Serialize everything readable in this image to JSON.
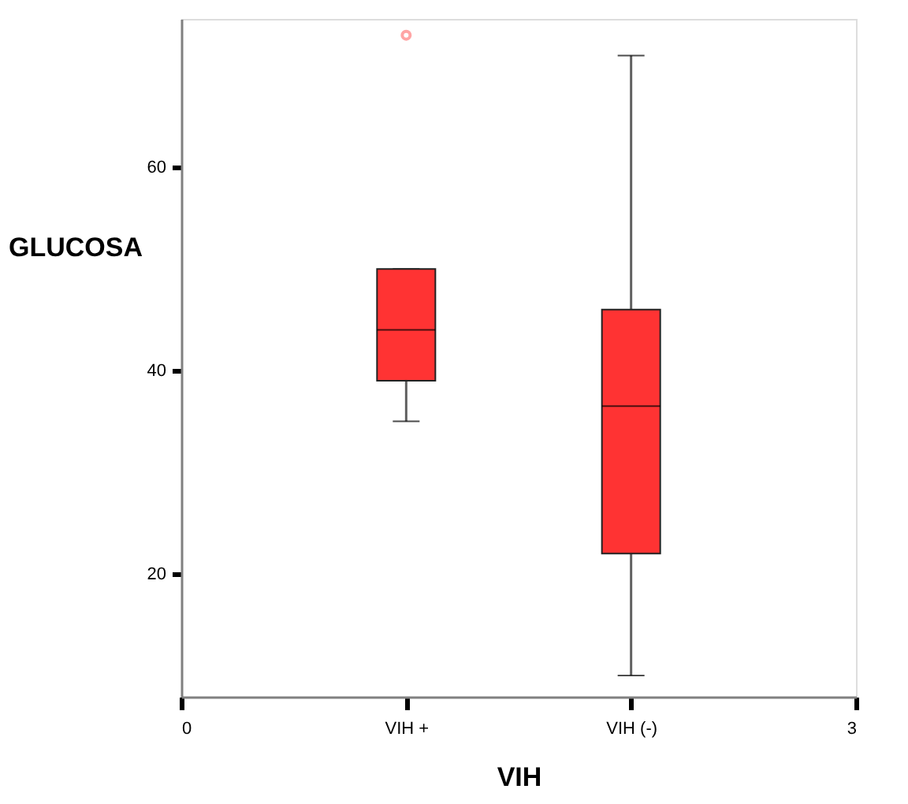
{
  "chart_data": {
    "type": "box",
    "xlabel": "VIH",
    "ylabel": "GLUCOSA",
    "x": [
      1,
      2
    ],
    "xlim": [
      0,
      3
    ],
    "xticks": [
      0,
      {
        "value": 1,
        "label": "VIH +"
      },
      {
        "value": 2,
        "label": "VIH (-)"
      },
      3
    ],
    "ylim": [
      7.9,
      74.6
    ],
    "yticks": [
      20,
      40,
      60
    ],
    "series": [
      {
        "color": "#ff3333",
        "boxes": [
          {
            "low": 35,
            "q1": 39,
            "median": 44,
            "q3": 50,
            "high": 50,
            "outliers": [
              73
            ]
          },
          {
            "low": 10,
            "q1": 22,
            "median": 36.5,
            "q3": 46,
            "high": 71
          }
        ]
      }
    ],
    "grid": false
  }
}
